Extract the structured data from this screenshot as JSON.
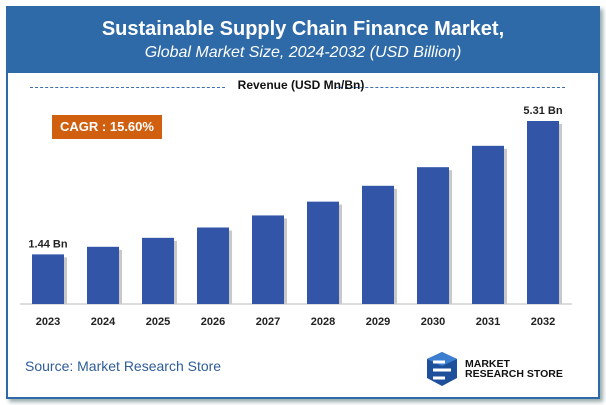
{
  "header": {
    "title": "Sustainable Supply Chain Finance Market,",
    "subtitle": "Global Market Size, 2024-2032 (USD Billion)"
  },
  "cagr_label": "CAGR : 15.60%",
  "source": "Source: Market Research Store",
  "logo": {
    "line1": "MARKET",
    "line2": "RESEARCH STORE"
  },
  "colors": {
    "header": "#2e6aa8",
    "bar": "#3355a8",
    "cagr": "#d05f10"
  },
  "chart_data": {
    "type": "bar",
    "title": "Revenue (USD Mn/Bn)",
    "categories": [
      "2023",
      "2024",
      "2025",
      "2026",
      "2027",
      "2028",
      "2029",
      "2030",
      "2031",
      "2032"
    ],
    "values": [
      1.44,
      1.66,
      1.92,
      2.22,
      2.57,
      2.97,
      3.43,
      3.97,
      4.59,
      5.31
    ],
    "data_labels": {
      "2023": "1.44 Bn",
      "2032": "5.31 Bn"
    },
    "ylim": [
      0,
      5.31
    ],
    "grid": false
  }
}
